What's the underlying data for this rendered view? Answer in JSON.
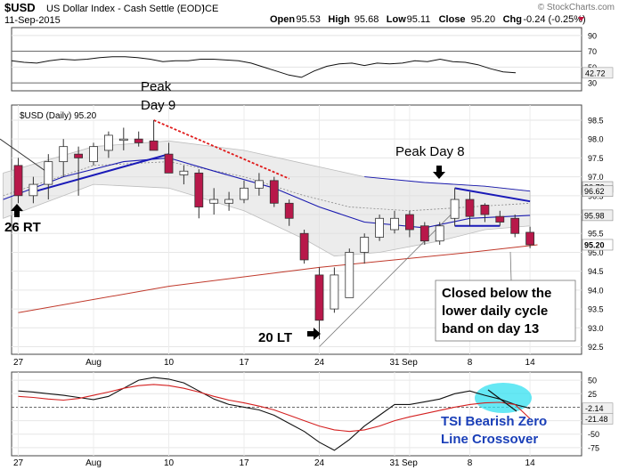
{
  "header": {
    "symbol": "$USD",
    "description": "US Dollar Index - Cash Settle (EOD)",
    "exchange": "ICE",
    "watermark": "© StockCharts.com",
    "date": "11-Sep-2015",
    "ohlc": [
      {
        "label": "Open",
        "value": "95.53"
      },
      {
        "label": "High",
        "value": "95.68"
      },
      {
        "label": "Low",
        "value": "95.11"
      },
      {
        "label": "Close",
        "value": "95.20"
      },
      {
        "label": "Chg",
        "value": "-0.24 (-0.25%)"
      }
    ],
    "down_arrow_color": "#c0143c"
  },
  "chart_data": [
    {
      "panel": "top-oscillator",
      "type": "line",
      "y_ticks": [
        30,
        50,
        70,
        90
      ],
      "ylim": [
        20,
        100
      ],
      "ref_lines": [
        30,
        70
      ],
      "last_value_label": "42.72",
      "x_index": [
        0,
        1,
        2,
        3,
        4,
        5,
        6,
        7,
        8,
        9,
        10,
        11,
        12,
        13,
        14,
        15,
        16,
        17,
        18,
        19,
        20,
        21,
        22,
        23,
        24,
        25,
        26,
        27,
        28,
        29,
        30,
        31,
        32,
        33,
        34,
        35,
        36,
        37,
        38,
        39,
        40
      ],
      "values": [
        58,
        56,
        55,
        58,
        60,
        59,
        60,
        62,
        63,
        63,
        62,
        60,
        57,
        58,
        58,
        60,
        60,
        59,
        58,
        55,
        50,
        45,
        40,
        37,
        45,
        51,
        54,
        55,
        52,
        55,
        54,
        55,
        58,
        57,
        60,
        57,
        56,
        53,
        48,
        44,
        42.72
      ]
    },
    {
      "panel": "price",
      "type": "candlestick",
      "label": "$USD (Daily) 95.20",
      "y_ticks": [
        92.5,
        93.0,
        93.5,
        94.0,
        94.5,
        95.0,
        95.5,
        96.0,
        96.5,
        97.0,
        97.5,
        98.0,
        98.5
      ],
      "ylim": [
        92.3,
        98.9
      ],
      "x_tick_labels": [
        {
          "i": 0,
          "label": "27"
        },
        {
          "i": 5,
          "label": "Aug"
        },
        {
          "i": 10,
          "label": "10"
        },
        {
          "i": 15,
          "label": "17"
        },
        {
          "i": 20,
          "label": "24"
        },
        {
          "i": 25,
          "label": "31"
        },
        {
          "i": 26,
          "label": "Sep"
        },
        {
          "i": 30,
          "label": "8"
        },
        {
          "i": 34,
          "label": "14"
        }
      ],
      "candles": [
        {
          "i": 0,
          "o": 97.3,
          "h": 97.5,
          "l": 96.3,
          "c": 96.5
        },
        {
          "i": 1,
          "o": 96.5,
          "h": 97.0,
          "l": 96.3,
          "c": 96.8
        },
        {
          "i": 2,
          "o": 96.8,
          "h": 97.6,
          "l": 96.4,
          "c": 97.4
        },
        {
          "i": 3,
          "o": 97.4,
          "h": 98.0,
          "l": 97.0,
          "c": 97.8
        },
        {
          "i": 4,
          "o": 97.6,
          "h": 97.8,
          "l": 96.5,
          "c": 97.5
        },
        {
          "i": 5,
          "o": 97.4,
          "h": 97.9,
          "l": 97.3,
          "c": 97.8
        },
        {
          "i": 6,
          "o": 97.7,
          "h": 98.2,
          "l": 97.5,
          "c": 98.1
        },
        {
          "i": 7,
          "o": 98.0,
          "h": 98.3,
          "l": 97.7,
          "c": 98.0
        },
        {
          "i": 8,
          "o": 98.0,
          "h": 98.2,
          "l": 97.8,
          "c": 97.9
        },
        {
          "i": 9,
          "o": 97.95,
          "h": 98.5,
          "l": 97.7,
          "c": 97.7
        },
        {
          "i": 10,
          "o": 97.6,
          "h": 97.9,
          "l": 97.1,
          "c": 97.1
        },
        {
          "i": 11,
          "o": 97.05,
          "h": 97.3,
          "l": 96.8,
          "c": 97.15
        },
        {
          "i": 12,
          "o": 97.1,
          "h": 97.2,
          "l": 95.9,
          "c": 96.2
        },
        {
          "i": 13,
          "o": 96.3,
          "h": 96.7,
          "l": 96.0,
          "c": 96.4
        },
        {
          "i": 14,
          "o": 96.3,
          "h": 96.6,
          "l": 96.1,
          "c": 96.4
        },
        {
          "i": 15,
          "o": 96.4,
          "h": 96.9,
          "l": 96.3,
          "c": 96.7
        },
        {
          "i": 16,
          "o": 96.7,
          "h": 97.1,
          "l": 96.5,
          "c": 96.9
        },
        {
          "i": 17,
          "o": 96.9,
          "h": 97.0,
          "l": 96.2,
          "c": 96.3
        },
        {
          "i": 18,
          "o": 96.3,
          "h": 96.4,
          "l": 95.7,
          "c": 95.9
        },
        {
          "i": 19,
          "o": 95.5,
          "h": 95.6,
          "l": 94.7,
          "c": 94.8
        },
        {
          "i": 20,
          "o": 94.4,
          "h": 94.6,
          "l": 92.7,
          "c": 93.2
        },
        {
          "i": 21,
          "o": 93.5,
          "h": 94.6,
          "l": 93.4,
          "c": 94.4
        },
        {
          "i": 22,
          "o": 93.8,
          "h": 95.1,
          "l": 93.8,
          "c": 95.0
        },
        {
          "i": 23,
          "o": 95.0,
          "h": 95.5,
          "l": 94.7,
          "c": 95.4
        },
        {
          "i": 24,
          "o": 95.4,
          "h": 96.0,
          "l": 95.3,
          "c": 95.9
        },
        {
          "i": 25,
          "o": 95.6,
          "h": 96.1,
          "l": 95.5,
          "c": 95.9
        },
        {
          "i": 26,
          "o": 96.0,
          "h": 96.1,
          "l": 95.4,
          "c": 95.6
        },
        {
          "i": 27,
          "o": 95.7,
          "h": 95.8,
          "l": 95.2,
          "c": 95.3
        },
        {
          "i": 28,
          "o": 95.3,
          "h": 95.8,
          "l": 95.2,
          "c": 95.7
        },
        {
          "i": 29,
          "o": 95.9,
          "h": 96.7,
          "l": 95.7,
          "c": 96.4
        },
        {
          "i": 30,
          "o": 96.4,
          "h": 96.6,
          "l": 95.7,
          "c": 95.95
        },
        {
          "i": 31,
          "o": 96.25,
          "h": 96.3,
          "l": 95.8,
          "c": 96.0
        },
        {
          "i": 32,
          "o": 95.95,
          "h": 96.1,
          "l": 95.7,
          "c": 95.8
        },
        {
          "i": 33,
          "o": 95.9,
          "h": 96.0,
          "l": 95.4,
          "c": 95.5
        },
        {
          "i": 34,
          "o": 95.53,
          "h": 95.68,
          "l": 95.11,
          "c": 95.2
        }
      ],
      "moving_average_long": [
        [
          0,
          93.4
        ],
        [
          10,
          94.1
        ],
        [
          20,
          94.6
        ],
        [
          30,
          95.0
        ],
        [
          34.5,
          95.2
        ]
      ],
      "band_upper": [
        [
          -1,
          97.1
        ],
        [
          5,
          97.8
        ],
        [
          10,
          97.95
        ],
        [
          15,
          97.7
        ],
        [
          19,
          97.35
        ],
        [
          23,
          97.0
        ],
        [
          27,
          96.85
        ],
        [
          31,
          96.75
        ],
        [
          34,
          96.62
        ]
      ],
      "band_lower": [
        [
          -1,
          95.9
        ],
        [
          5,
          96.8
        ],
        [
          10,
          96.7
        ],
        [
          15,
          96.1
        ],
        [
          19,
          95.35
        ],
        [
          21,
          94.9
        ],
        [
          24,
          95.0
        ],
        [
          28,
          95.3
        ],
        [
          31,
          95.6
        ],
        [
          34,
          95.7
        ]
      ],
      "middle_line": [
        [
          -1,
          96.4
        ],
        [
          3,
          97.0
        ],
        [
          7,
          97.4
        ],
        [
          10,
          97.5
        ],
        [
          13,
          97.15
        ],
        [
          17,
          96.7
        ],
        [
          20,
          96.2
        ],
        [
          23,
          95.8
        ],
        [
          27,
          95.65
        ],
        [
          30,
          95.9
        ],
        [
          34,
          95.98
        ]
      ],
      "dotted_mid": [
        [
          -1,
          96.5
        ],
        [
          5,
          97.3
        ],
        [
          10,
          97.4
        ],
        [
          15,
          97.0
        ],
        [
          19,
          96.5
        ],
        [
          22,
          96.2
        ],
        [
          26,
          96.1
        ],
        [
          30,
          96.2
        ],
        [
          34,
          96.3
        ]
      ],
      "value_labels": [
        "96.73",
        "96.62",
        "95.98",
        "95.20"
      ],
      "annotations": {
        "peak9": "Peak\nDay 9",
        "peak8": "Peak Day 8",
        "rt26": "26 RT",
        "lt20": "20 LT",
        "note": "Closed below the\nlower daily cycle\nband on day 13"
      }
    },
    {
      "panel": "tsi",
      "type": "line",
      "y_ticks": [
        50,
        25,
        -25,
        -50,
        -75
      ],
      "ylim": [
        -90,
        65
      ],
      "last_value_labels": [
        "-2.14",
        "-21.48"
      ],
      "series": [
        {
          "values": [
            30,
            28,
            25,
            22,
            18,
            14,
            20,
            35,
            50,
            55,
            52,
            45,
            30,
            15,
            5,
            0,
            -5,
            -15,
            -30,
            -45,
            -65,
            -80,
            -60,
            -35,
            -15,
            5,
            5,
            10,
            15,
            25,
            30,
            22,
            15,
            5,
            -2.14
          ]
        },
        {
          "values": [
            20,
            18,
            15,
            13,
            16,
            22,
            28,
            35,
            40,
            42,
            40,
            35,
            28,
            20,
            13,
            8,
            2,
            -5,
            -15,
            -25,
            -35,
            -42,
            -45,
            -42,
            -35,
            -25,
            -18,
            -12,
            -6,
            0,
            5,
            8,
            9,
            5,
            -21.48
          ]
        }
      ],
      "annotation": "TSI Bearish Zero\nLine Crossover"
    }
  ]
}
